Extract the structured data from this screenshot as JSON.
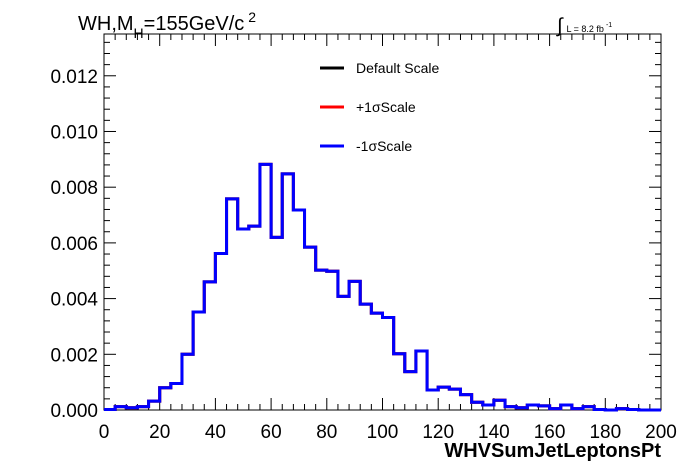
{
  "chart_data": {
    "type": "histogram",
    "title": {
      "main": "WH,M",
      "subscript": "H",
      "value": "=155GeV/c",
      "superscript": "2"
    },
    "luminosity": {
      "integral_symbol": "∫",
      "text": "L = 8.2 fb",
      "superscript": "-1"
    },
    "xlabel": "WHVSumJetLeptonsPt",
    "ylabel": "",
    "xlim": [
      0,
      200
    ],
    "ylim": [
      0,
      0.0135
    ],
    "x_ticks": [
      0,
      20,
      40,
      60,
      80,
      100,
      120,
      140,
      160,
      180,
      200
    ],
    "x_tick_labels": [
      "0",
      "20",
      "40",
      "60",
      "80",
      "100",
      "120",
      "140",
      "160",
      "180",
      "200"
    ],
    "y_ticks": [
      0,
      0.002,
      0.004,
      0.006,
      0.008,
      0.01,
      0.012
    ],
    "y_tick_labels": [
      "0.000",
      "0.002",
      "0.004",
      "0.006",
      "0.008",
      "0.010",
      "0.012"
    ],
    "legend_position": "top-center",
    "bin_edges": [
      0,
      4,
      8,
      12,
      16,
      20,
      24,
      28,
      32,
      36,
      40,
      44,
      48,
      52,
      56,
      60,
      64,
      68,
      72,
      76,
      80,
      84,
      88,
      92,
      96,
      100,
      104,
      108,
      112,
      116,
      120,
      124,
      128,
      132,
      136,
      140,
      144,
      148,
      152,
      156,
      160,
      164,
      168,
      172,
      176,
      180,
      184,
      188,
      192,
      196,
      200
    ],
    "series": [
      {
        "name": "Default Scale",
        "color": "#000000",
        "values": [
          2e-05,
          0.00012,
          8e-05,
          0.00012,
          0.00032,
          0.0008,
          0.00095,
          0.002,
          0.00352,
          0.0046,
          0.00562,
          0.00758,
          0.0065,
          0.0066,
          0.00882,
          0.0062,
          0.00848,
          0.00718,
          0.00585,
          0.00502,
          0.00498,
          0.00408,
          0.00462,
          0.0038,
          0.00348,
          0.00332,
          0.00202,
          0.00138,
          0.00212,
          0.00072,
          0.00082,
          0.00075,
          0.00055,
          0.00028,
          0.00018,
          0.00035,
          0.00012,
          8e-05,
          0.00018,
          0.00015,
          5e-05,
          0.00018,
          5e-05,
          0.00012,
          2e-05,
          0.0,
          5e-05,
          2e-05,
          0.0,
          0.0
        ]
      },
      {
        "name": "+1σScale",
        "color": "#ff0000",
        "values": [
          2e-05,
          0.00012,
          8e-05,
          0.00012,
          0.00032,
          0.0008,
          0.00095,
          0.002,
          0.00352,
          0.0046,
          0.00562,
          0.00758,
          0.0065,
          0.0066,
          0.00882,
          0.0062,
          0.00848,
          0.00718,
          0.00585,
          0.00502,
          0.00498,
          0.00408,
          0.00462,
          0.0038,
          0.00348,
          0.00332,
          0.00202,
          0.00138,
          0.00212,
          0.00072,
          0.00082,
          0.00075,
          0.00055,
          0.00028,
          0.00018,
          0.00035,
          0.00012,
          8e-05,
          0.00018,
          0.00015,
          5e-05,
          0.00018,
          5e-05,
          0.00012,
          2e-05,
          0.0,
          5e-05,
          2e-05,
          0.0,
          0.0
        ]
      },
      {
        "name": "-1σScale",
        "color": "#0000ff",
        "values": [
          2e-05,
          0.00012,
          8e-05,
          0.00012,
          0.00032,
          0.0008,
          0.00095,
          0.002,
          0.00352,
          0.0046,
          0.00562,
          0.00758,
          0.0065,
          0.0066,
          0.00882,
          0.0062,
          0.00848,
          0.00718,
          0.00585,
          0.00502,
          0.00498,
          0.00408,
          0.00462,
          0.0038,
          0.00348,
          0.00332,
          0.00202,
          0.00138,
          0.00212,
          0.00072,
          0.00082,
          0.00075,
          0.00055,
          0.00028,
          0.00018,
          0.00035,
          0.00012,
          8e-05,
          0.00018,
          0.00015,
          5e-05,
          0.00018,
          5e-05,
          0.00012,
          2e-05,
          0.0,
          5e-05,
          2e-05,
          0.0,
          0.0
        ]
      }
    ]
  }
}
